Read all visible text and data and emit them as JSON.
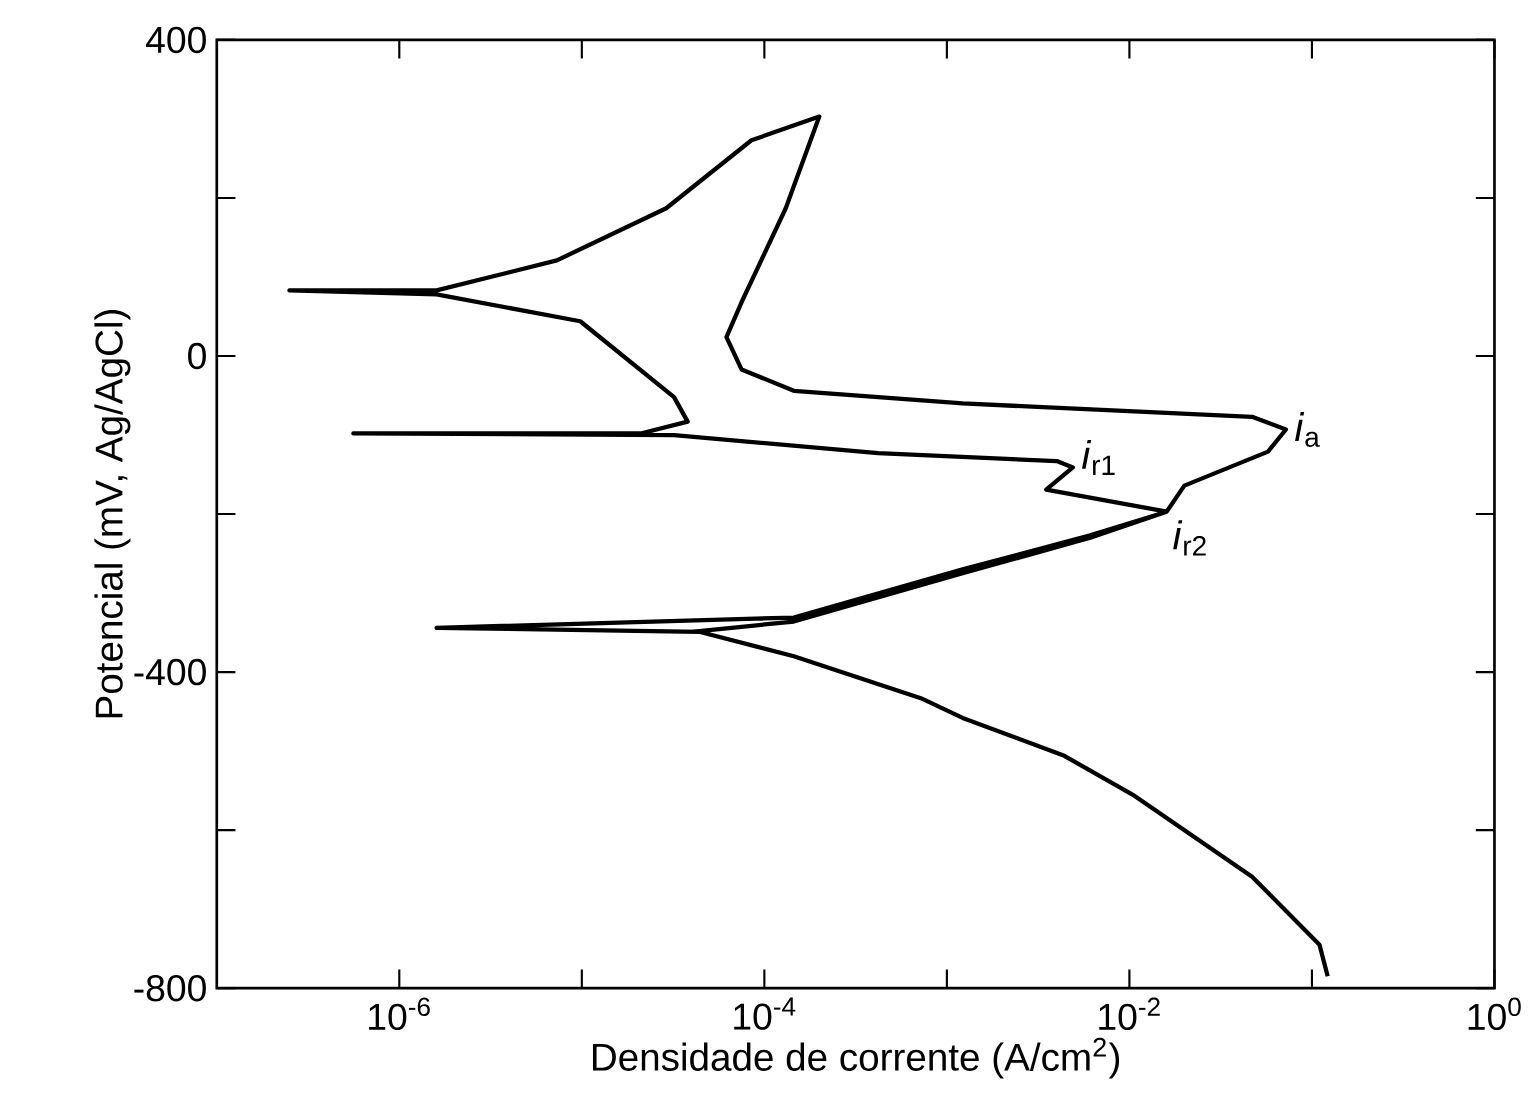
{
  "chart_data": {
    "type": "line",
    "xlabel": "Densidade de corrente (A/cm$^{2}$)",
    "ylabel": "Potencial (mV, Ag/AgCl)",
    "log": "x",
    "marker": "none",
    "line_style": "solid",
    "xlim": [
      1e-07,
      1
    ],
    "ylim": [
      -800,
      400
    ],
    "xticks": [
      {
        "value": 1e-06,
        "label": "10$^{-6}$"
      },
      {
        "value": 1e-05,
        "label": null
      },
      {
        "value": 0.0001,
        "label": "10$^{-4}$"
      },
      {
        "value": 0.001,
        "label": null
      },
      {
        "value": 0.01,
        "label": "10$^{-2}$"
      },
      {
        "value": 0.1,
        "label": null
      },
      {
        "value": 1,
        "label": "10$^{0}$"
      }
    ],
    "yticks": [
      -800,
      {
        "value": -600,
        "label": null
      },
      -400,
      {
        "value": -200,
        "label": null
      },
      0,
      {
        "value": 200,
        "label": null
      },
      400
    ],
    "series": [
      {
        "color": "#000000",
        "x": [
          0.122,
          0.11,
          0.047,
          0.0104,
          0.0044,
          0.00122,
          0.00072,
          0.000145,
          4.4e-05,
          1.6e-06,
          0.000145,
          0.00122,
          0.0061,
          0.016,
          0.02,
          0.0575,
          0.072,
          0.047,
          0.00122,
          0.000145,
          7.5e-05,
          6.2e-05,
          7.5e-05,
          0.000131,
          0.0002,
          8.5e-05,
          2.9e-05,
          7.3e-06,
          1.6e-06,
          2.5e-07,
          1.6e-06,
          9.8e-06,
          3.2e-05,
          3.8e-05,
          2.1e-05,
          5.6e-07,
          3.2e-05,
          0.00042,
          0.004,
          0.0049,
          0.0035,
          0.016,
          0.0061,
          0.00122,
          0.000145,
          4e-05
        ],
        "values": [
          -785,
          -745,
          -659,
          -555,
          -506,
          -458,
          -433,
          -380,
          -349,
          -344,
          -331,
          -270,
          -227,
          -197,
          -164,
          -121,
          -93,
          -77,
          -60,
          -44,
          -17,
          24,
          68,
          187,
          303,
          273,
          187,
          121,
          83,
          83,
          78,
          44,
          -52,
          -83,
          -98,
          -98,
          -100,
          -123,
          -133,
          -141,
          -169,
          -197,
          -230,
          -275,
          -336,
          -349
        ]
      }
    ],
    "annotations": [
      {
        "text": "*i*$_{a}$",
        "x": 0.072,
        "y": -93
      },
      {
        "text": "*i*$_{r1}$",
        "x": 0.0049,
        "y": -141
      },
      {
        "text": "*i*$_{r2}$",
        "x": 0.016,
        "y": -197
      }
    ]
  }
}
